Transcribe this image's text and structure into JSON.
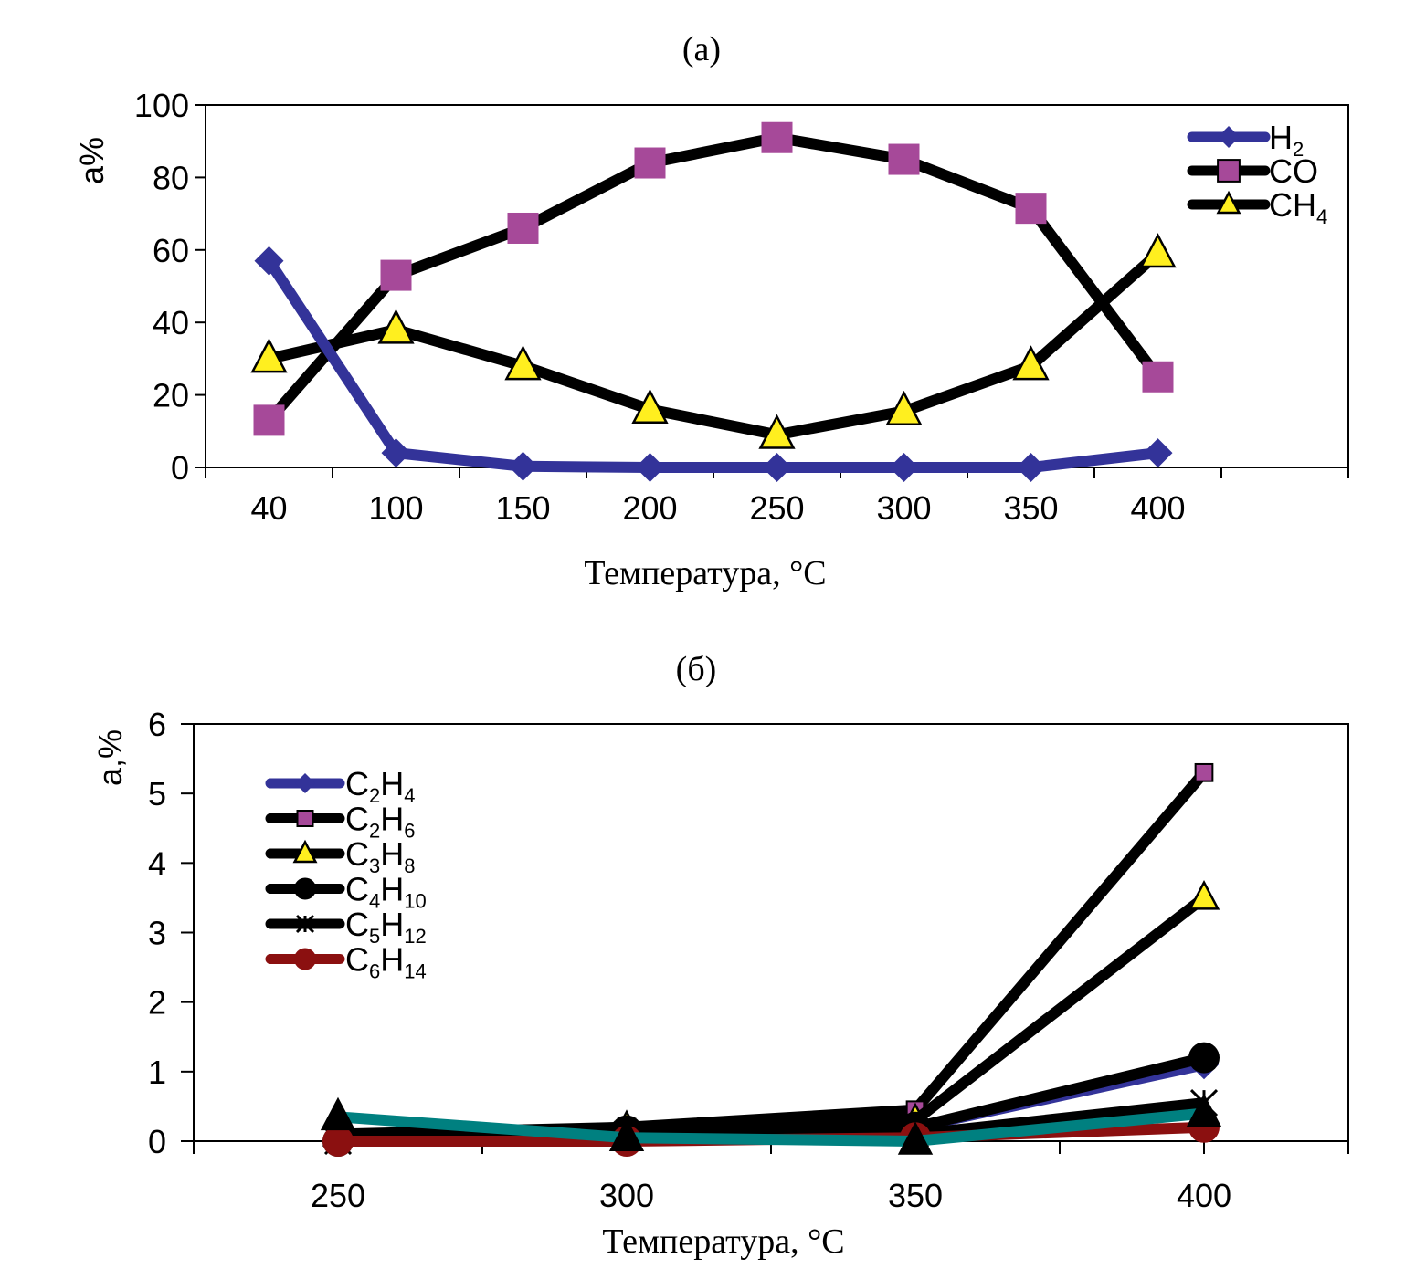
{
  "chart_data": [
    {
      "type": "line",
      "title": "(a)",
      "xlabel": "Температура, °C",
      "ylabel": "a%",
      "categories": [
        "40",
        "100",
        "150",
        "200",
        "250",
        "300",
        "350",
        "400"
      ],
      "ylim": [
        0,
        100
      ],
      "yticks": [
        0,
        20,
        40,
        60,
        80,
        100
      ],
      "grid": false,
      "legend": "top-right",
      "series": [
        {
          "name": "H2",
          "label_main": "H",
          "label_sub": "2",
          "color": "#333399",
          "line_color": "#333399",
          "marker": "diamond",
          "marker_fill": "#333399",
          "values": [
            57,
            4,
            0.3,
            0,
            0,
            0,
            0,
            4
          ]
        },
        {
          "name": "CO",
          "label_main": "CO",
          "label_sub": "",
          "color": "#000000",
          "line_color": "#000000",
          "marker": "square",
          "marker_fill": "#A64999",
          "values": [
            13,
            53,
            66,
            84,
            91,
            85,
            71.5,
            25
          ]
        },
        {
          "name": "CH4",
          "label_main": "CH",
          "label_sub": "4",
          "color": "#000000",
          "line_color": "#000000",
          "marker": "triangle",
          "marker_fill": "#FFEF1F",
          "values": [
            30,
            38,
            28,
            16,
            9,
            15.5,
            28,
            59
          ]
        }
      ]
    },
    {
      "type": "line",
      "title": "(б)",
      "xlabel": "Температура, °C",
      "ylabel": "a,%",
      "categories": [
        "250",
        "300",
        "350",
        "400"
      ],
      "ylim": [
        0,
        6
      ],
      "yticks": [
        0,
        1,
        2,
        3,
        4,
        5,
        6
      ],
      "grid": false,
      "legend": "top-left",
      "series": [
        {
          "name": "C2H4",
          "label_parts": [
            "C",
            "2",
            "H",
            "4"
          ],
          "line_color": "#333399",
          "marker": "diamond",
          "marker_fill": "#333399",
          "values": [
            0.05,
            0.15,
            0.2,
            1.1
          ],
          "in_legend": true
        },
        {
          "name": "C2H6",
          "label_parts": [
            "C",
            "2",
            "H",
            "6"
          ],
          "line_color": "#000000",
          "marker": "square",
          "marker_fill": "#A64999",
          "values": [
            0.05,
            0.2,
            0.45,
            5.3
          ],
          "in_legend": true
        },
        {
          "name": "C3H8",
          "label_parts": [
            "C",
            "3",
            "H",
            "8"
          ],
          "line_color": "#000000",
          "marker": "triangle",
          "marker_fill": "#FFEF1F",
          "values": [
            0.1,
            0.2,
            0.3,
            3.5
          ],
          "in_legend": true
        },
        {
          "name": "C4H10",
          "label_parts": [
            "C",
            "4",
            "H",
            "10"
          ],
          "line_color": "#000000",
          "marker": "circle",
          "marker_fill": "#000000",
          "values": [
            0,
            0.15,
            0.2,
            1.2
          ],
          "in_legend": true
        },
        {
          "name": "C5H12",
          "label_parts": [
            "C",
            "5",
            "H",
            "12"
          ],
          "line_color": "#000000",
          "marker": "asterisk",
          "marker_fill": "#000000",
          "values": [
            0,
            0.1,
            0.1,
            0.55
          ],
          "in_legend": true
        },
        {
          "name": "C6H14",
          "label_parts": [
            "C",
            "6",
            "H",
            "14"
          ],
          "line_color": "#8B1010",
          "marker": "circle",
          "marker_fill": "#8B1010",
          "values": [
            0,
            0,
            0.05,
            0.2
          ],
          "in_legend": true
        },
        {
          "name": "unlabeled",
          "label_parts": [],
          "line_color": "#008080",
          "marker": "triangle",
          "marker_fill": "#000000",
          "values": [
            0.35,
            0.05,
            0,
            0.4
          ],
          "in_legend": false
        }
      ]
    }
  ]
}
